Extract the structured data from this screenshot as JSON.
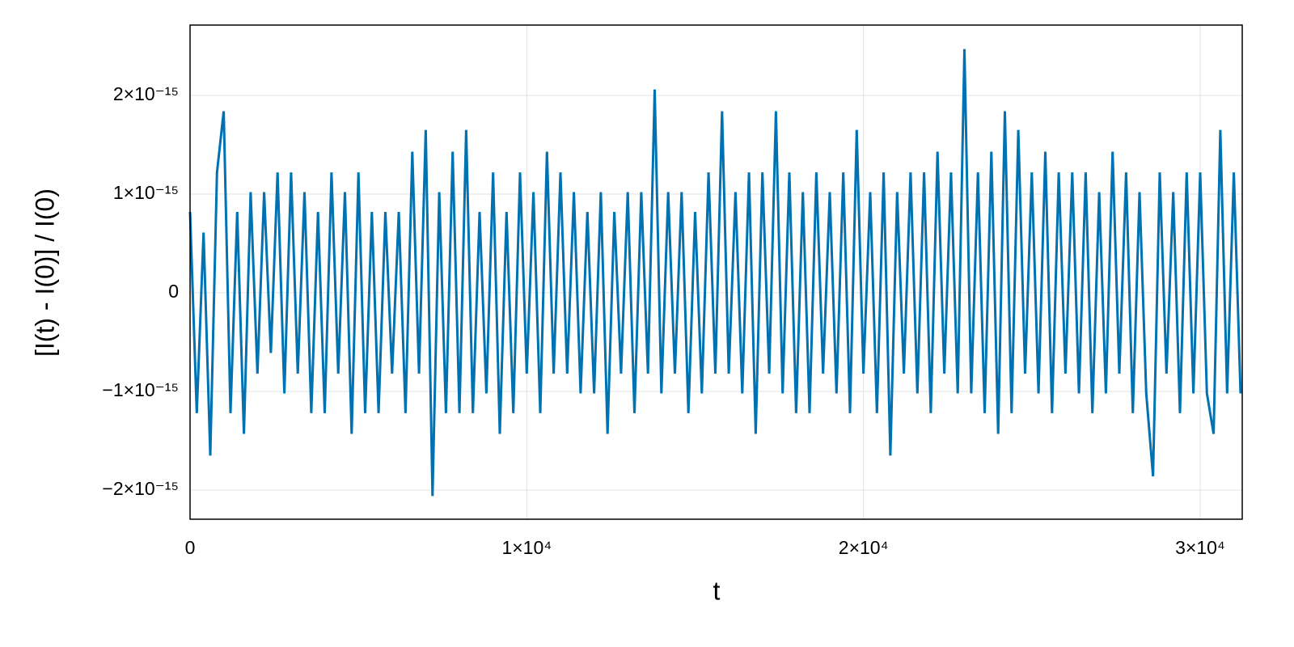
{
  "chart_data": {
    "type": "line",
    "xlabel": "t",
    "ylabel": "[I(t) - I(0)] / I(0)",
    "xlim": [
      0,
      31250
    ],
    "ylim": [
      -2.295e-15,
      2.713e-15
    ],
    "xticks": [
      0,
      {
        "value": 10000,
        "label": "1×10⁴"
      },
      {
        "value": 20000,
        "label": "2×10⁴"
      },
      {
        "value": 30000,
        "label": "3×10⁴"
      }
    ],
    "yticks": [
      {
        "value": -2e-15,
        "label": "−2×10⁻¹⁵"
      },
      {
        "value": -1e-15,
        "label": "−1×10⁻¹⁵"
      },
      0,
      {
        "value": 1e-15,
        "label": "1×10⁻¹⁵"
      },
      {
        "value": 2e-15,
        "label": "2×10⁻¹⁵"
      }
    ],
    "grid": true,
    "x": [
      0,
      200,
      400,
      600,
      800,
      1000,
      1200,
      1400,
      1600,
      1800,
      2000,
      2200,
      2400,
      2600,
      2800,
      3000,
      3200,
      3400,
      3600,
      3800,
      4000,
      4200,
      4400,
      4600,
      4800,
      5000,
      5200,
      5400,
      5600,
      5800,
      6000,
      6200,
      6400,
      6600,
      6800,
      7000,
      7200,
      7400,
      7600,
      7800,
      8000,
      8200,
      8400,
      8600,
      8800,
      9000,
      9200,
      9400,
      9600,
      9800,
      10000,
      10200,
      10400,
      10600,
      10800,
      11000,
      11200,
      11400,
      11600,
      11800,
      12000,
      12200,
      12400,
      12600,
      12800,
      13000,
      13200,
      13400,
      13600,
      13800,
      14000,
      14200,
      14400,
      14600,
      14800,
      15000,
      15200,
      15400,
      15600,
      15800,
      16000,
      16200,
      16400,
      16600,
      16800,
      17000,
      17200,
      17400,
      17600,
      17800,
      18000,
      18200,
      18400,
      18600,
      18800,
      19000,
      19200,
      19400,
      19600,
      19800,
      20000,
      20200,
      20400,
      20600,
      20800,
      21000,
      21200,
      21400,
      21600,
      21800,
      22000,
      22200,
      22400,
      22600,
      22800,
      23000,
      23200,
      23400,
      23600,
      23800,
      24000,
      24200,
      24400,
      24600,
      24800,
      25000,
      25200,
      25400,
      25600,
      25800,
      26000,
      26200,
      26400,
      26600,
      26800,
      27000,
      27200,
      27400,
      27600,
      27800,
      28000,
      28200,
      28400,
      28600,
      28800,
      29000,
      29200,
      29400,
      29600,
      29800,
      30000,
      30200,
      30400,
      30600,
      30800,
      31000,
      31200
    ],
    "series": [
      {
        "color": "#0072b2",
        "values": [
          8.2e-16,
          -1.22e-15,
          6.1e-16,
          -1.65e-15,
          1.22e-15,
          1.84e-15,
          -1.22e-15,
          8.2e-16,
          -1.43e-15,
          1.02e-15,
          -8.2e-16,
          1.02e-15,
          -6.1e-16,
          1.22e-15,
          -1.02e-15,
          1.22e-15,
          -8.2e-16,
          1.02e-15,
          -1.22e-15,
          8.2e-16,
          -1.22e-15,
          1.22e-15,
          -8.2e-16,
          1.02e-15,
          -1.43e-15,
          1.22e-15,
          -1.22e-15,
          8.2e-16,
          -1.22e-15,
          8.2e-16,
          -8.2e-16,
          8.2e-16,
          -1.22e-15,
          1.43e-15,
          -8.2e-16,
          1.65e-15,
          -2.06e-15,
          1.02e-15,
          -1.22e-15,
          1.43e-15,
          -1.22e-15,
          1.65e-15,
          -1.22e-15,
          8.2e-16,
          -1.02e-15,
          1.22e-15,
          -1.43e-15,
          8.2e-16,
          -1.22e-15,
          1.22e-15,
          -8.2e-16,
          1.02e-15,
          -1.22e-15,
          1.43e-15,
          -8.2e-16,
          1.22e-15,
          -8.2e-16,
          1.02e-15,
          -1.02e-15,
          8.2e-16,
          -1.02e-15,
          1.02e-15,
          -1.43e-15,
          8.2e-16,
          -8.2e-16,
          1.02e-15,
          -1.22e-15,
          1.02e-15,
          -8.2e-16,
          2.06e-15,
          -1.02e-15,
          1.02e-15,
          -8.2e-16,
          1.02e-15,
          -1.22e-15,
          8.2e-16,
          -1.02e-15,
          1.22e-15,
          -8.2e-16,
          1.84e-15,
          -8.2e-16,
          1.02e-15,
          -1.02e-15,
          1.22e-15,
          -1.43e-15,
          1.22e-15,
          -8.2e-16,
          1.84e-15,
          -1.02e-15,
          1.22e-15,
          -1.22e-15,
          1.02e-15,
          -1.22e-15,
          1.22e-15,
          -8.2e-16,
          1.02e-15,
          -1.02e-15,
          1.22e-15,
          -1.22e-15,
          1.65e-15,
          -8.2e-16,
          1.02e-15,
          -1.22e-15,
          1.22e-15,
          -1.65e-15,
          1.02e-15,
          -8.2e-16,
          1.22e-15,
          -1.02e-15,
          1.22e-15,
          -1.22e-15,
          1.43e-15,
          -8.2e-16,
          1.22e-15,
          -1.02e-15,
          2.47e-15,
          -1.02e-15,
          1.22e-15,
          -1.22e-15,
          1.43e-15,
          -1.43e-15,
          1.84e-15,
          -1.22e-15,
          1.65e-15,
          -8.2e-16,
          1.22e-15,
          -1.02e-15,
          1.43e-15,
          -1.22e-15,
          1.22e-15,
          -8.2e-16,
          1.22e-15,
          -1.02e-15,
          1.22e-15,
          -1.22e-15,
          1.02e-15,
          -1.02e-15,
          1.43e-15,
          -8.2e-16,
          1.22e-15,
          -1.22e-15,
          1.02e-15,
          -1.02e-15,
          -1.86e-15,
          1.22e-15,
          -8.2e-16,
          1.02e-15,
          -1.22e-15,
          1.22e-15,
          -1.02e-15,
          1.22e-15,
          -1.02e-15,
          -1.43e-15,
          1.65e-15,
          -1.02e-15,
          1.22e-15,
          -1.02e-15
        ]
      }
    ]
  }
}
